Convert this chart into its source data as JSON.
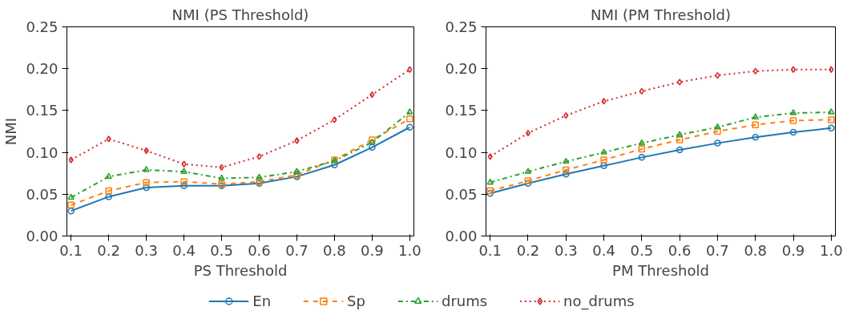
{
  "chart_data": [
    {
      "type": "line",
      "title": "NMI (PS Threshold)",
      "xlabel": "PS Threshold",
      "ylabel": "NMI",
      "x": [
        0.1,
        0.2,
        0.3,
        0.4,
        0.5,
        0.6,
        0.7,
        0.8,
        0.9,
        1.0
      ],
      "xlim": [
        0.089,
        1.011
      ],
      "ylim": [
        0,
        0.25
      ],
      "xticks": [
        0.1,
        0.2,
        0.3,
        0.4,
        0.5,
        0.6,
        0.7,
        0.8,
        0.9,
        {
          "value": 1,
          "label": "1.0"
        }
      ],
      "yticks": [
        {
          "value": 0,
          "label": "0.00"
        },
        {
          "value": 0.05,
          "label": "0.05"
        },
        {
          "value": 0.1,
          "label": "0.10"
        },
        {
          "value": 0.15,
          "label": "0.15"
        },
        {
          "value": 0.2,
          "label": "0.20"
        },
        {
          "value": 0.25,
          "label": "0.25"
        }
      ],
      "grid": false,
      "legend": "bottom",
      "series": [
        {
          "name": "En",
          "color": "#1f77b4",
          "marker": "circle",
          "line_style": "solid",
          "values": [
            0.03,
            0.047,
            0.058,
            0.06,
            0.06,
            0.063,
            0.071,
            0.085,
            0.106,
            0.13
          ]
        },
        {
          "name": "Sp",
          "color": "#ff7f0e",
          "marker": "square",
          "line_style": "dashed",
          "values": [
            0.037,
            0.054,
            0.064,
            0.065,
            0.062,
            0.065,
            0.073,
            0.091,
            0.115,
            0.14
          ]
        },
        {
          "name": "drums",
          "color": "#2ca02c",
          "marker": "triangle",
          "line_style": "dashdot",
          "values": [
            0.046,
            0.071,
            0.079,
            0.077,
            0.069,
            0.07,
            0.077,
            0.09,
            0.112,
            0.148
          ]
        },
        {
          "name": "no_drums",
          "color": "#d62728",
          "marker": "diamond",
          "line_style": "dotted",
          "values": [
            0.091,
            0.116,
            0.102,
            0.086,
            0.082,
            0.095,
            0.114,
            0.139,
            0.169,
            0.199
          ]
        }
      ]
    },
    {
      "type": "line",
      "title": "NMI (PM Threshold)",
      "xlabel": "PM Threshold",
      "x": [
        0.1,
        0.2,
        0.3,
        0.4,
        0.5,
        0.6,
        0.7,
        0.8,
        0.9,
        1.0
      ],
      "xlim": [
        0.089,
        1.011
      ],
      "ylim": [
        0,
        0.25
      ],
      "xticks": [
        0.1,
        0.2,
        0.3,
        0.4,
        0.5,
        0.6,
        0.7,
        0.8,
        0.9,
        {
          "value": 1,
          "label": "1.0"
        }
      ],
      "yticks": [
        {
          "value": 0,
          "label": "0.00"
        },
        {
          "value": 0.05,
          "label": "0.05"
        },
        {
          "value": 0.1,
          "label": "0.10"
        },
        {
          "value": 0.15,
          "label": "0.15"
        },
        {
          "value": 0.2,
          "label": "0.20"
        },
        {
          "value": 0.25,
          "label": "0.25"
        }
      ],
      "grid": false,
      "legend": "bottom",
      "series": [
        {
          "name": "En",
          "color": "#1f77b4",
          "marker": "circle",
          "line_style": "solid",
          "values": [
            0.051,
            0.063,
            0.074,
            0.084,
            0.094,
            0.103,
            0.111,
            0.118,
            0.124,
            0.129
          ]
        },
        {
          "name": "Sp",
          "color": "#ff7f0e",
          "marker": "square",
          "line_style": "dashed",
          "values": [
            0.054,
            0.066,
            0.079,
            0.091,
            0.104,
            0.115,
            0.125,
            0.133,
            0.138,
            0.139
          ]
        },
        {
          "name": "drums",
          "color": "#2ca02c",
          "marker": "triangle",
          "line_style": "dashdot",
          "values": [
            0.064,
            0.077,
            0.089,
            0.1,
            0.111,
            0.121,
            0.13,
            0.142,
            0.147,
            0.148
          ]
        },
        {
          "name": "no_drums",
          "color": "#d62728",
          "marker": "diamond",
          "line_style": "dotted",
          "values": [
            0.095,
            0.123,
            0.144,
            0.161,
            0.173,
            0.184,
            0.192,
            0.197,
            0.199,
            0.199
          ]
        }
      ]
    }
  ]
}
